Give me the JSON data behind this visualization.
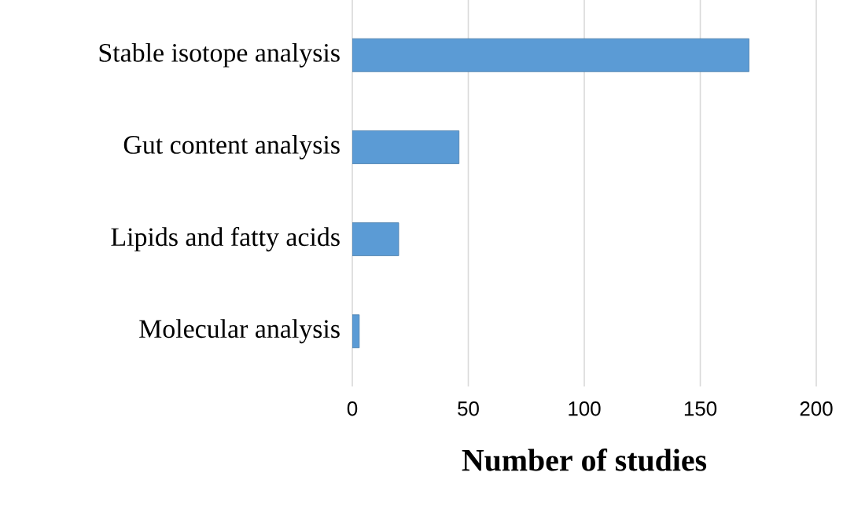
{
  "chart_data": {
    "type": "bar",
    "orientation": "horizontal",
    "xlabel": "Number of studies",
    "categories": [
      "Stable isotope analysis",
      "Gut content analysis",
      "Lipids and fatty acids",
      "Molecular analysis"
    ],
    "values": [
      171,
      46,
      20,
      3
    ],
    "color": "#5b9bd5",
    "xlim": [
      0,
      200
    ],
    "xticks": [
      0,
      50,
      100,
      150,
      200
    ],
    "grid": "x"
  }
}
